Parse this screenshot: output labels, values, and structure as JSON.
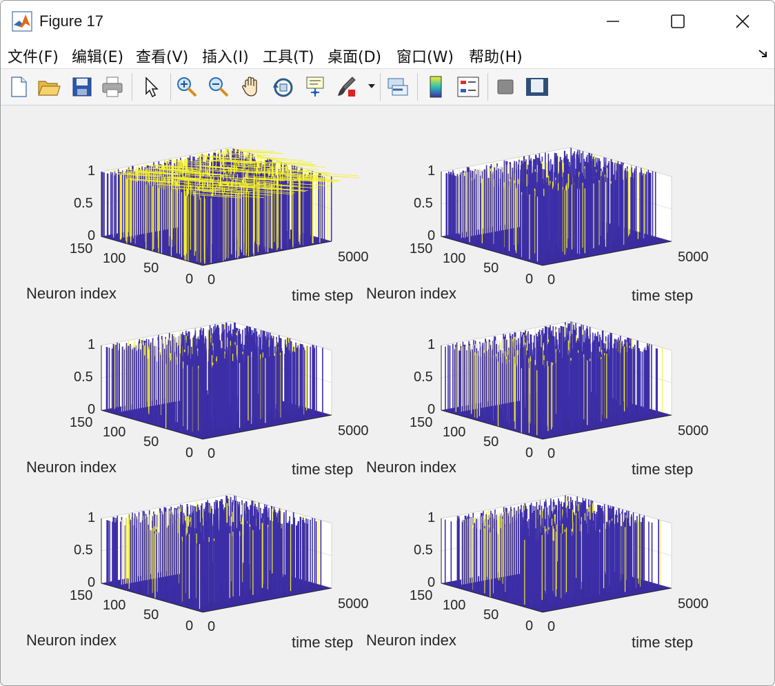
{
  "window": {
    "title": "Figure 17"
  },
  "menu": [
    "文件(F)",
    "编辑(E)",
    "查看(V)",
    "插入(I)",
    "工具(T)",
    "桌面(D)",
    "窗口(W)",
    "帮助(H)"
  ],
  "toolbar": [
    "new-figure",
    "open-file",
    "save",
    "print",
    "pointer",
    "zoom-in",
    "zoom-out",
    "pan",
    "rotate-3d",
    "data-cursor",
    "brush",
    "link-plot",
    "colorbar",
    "legend",
    "hide-plot-tools",
    "show-plot-tools"
  ],
  "colors": {
    "fill": "#3d2ea8",
    "spike": "#f5f22a"
  },
  "subplots": [
    {
      "ylabel": "Neuron index",
      "xlabel": "time step",
      "zticks": [
        "1",
        "0.5",
        "0"
      ],
      "yticks": [
        "150",
        "100",
        "50",
        "0"
      ],
      "xticks": [
        "0",
        "5000"
      ],
      "density": 0.85
    },
    {
      "ylabel": "Neuron index",
      "xlabel": "time step",
      "zticks": [
        "1",
        "0.5",
        "0"
      ],
      "yticks": [
        "150",
        "100",
        "50",
        "0"
      ],
      "xticks": [
        "0",
        "5000"
      ],
      "density": 0.45
    },
    {
      "ylabel": "Neuron index",
      "xlabel": "time step",
      "zticks": [
        "1",
        "0.5",
        "0"
      ],
      "yticks": [
        "150",
        "100",
        "50",
        "0"
      ],
      "xticks": [
        "0",
        "5000"
      ],
      "density": 0.55
    },
    {
      "ylabel": "Neuron index",
      "xlabel": "time step",
      "zticks": [
        "1",
        "0.5",
        "0"
      ],
      "yticks": [
        "150",
        "100",
        "50",
        "0"
      ],
      "xticks": [
        "0",
        "5000"
      ],
      "density": 0.45
    },
    {
      "ylabel": "Neuron index",
      "xlabel": "time step",
      "zticks": [
        "1",
        "0.5",
        "0"
      ],
      "yticks": [
        "150",
        "100",
        "50",
        "0"
      ],
      "xticks": [
        "0",
        "5000"
      ],
      "density": 0.45
    },
    {
      "ylabel": "Neuron index",
      "xlabel": "time step",
      "zticks": [
        "1",
        "0.5",
        "0"
      ],
      "yticks": [
        "150",
        "100",
        "50",
        "0"
      ],
      "xticks": [
        "0",
        "5000"
      ],
      "density": 0.45
    }
  ]
}
